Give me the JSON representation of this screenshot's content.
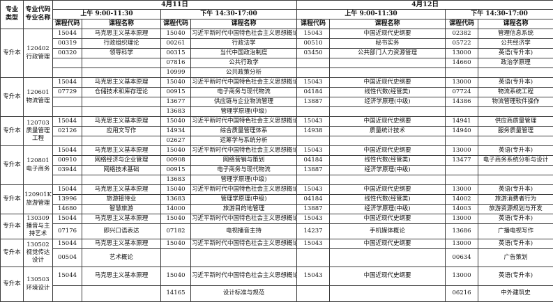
{
  "header": {
    "major_type": [
      "专业",
      "类型"
    ],
    "major_code_name": [
      "专业代码",
      "专业名称"
    ],
    "dates": [
      "4月11日",
      "4月12日"
    ],
    "am_label": "上午 9:00-11:30",
    "pm_label": "下午 14:30-17:00",
    "course_code_label": "课程代码",
    "course_name_label": "课程名称"
  },
  "majors": [
    {
      "type": "专升本",
      "code": "120402",
      "name": "行政管理",
      "rows": [
        [
          "15044",
          "马克思主义基本原理",
          "15040",
          "习近平新时代中国特色社会主义思想概论",
          "15043",
          "中国近现代史纲要",
          "02382",
          "管理信息系统"
        ],
        [
          "00319",
          "行政组织理论",
          "00261",
          "行政法学",
          "00510",
          "秘书实务",
          "05722",
          "公共经济学"
        ],
        [
          "00320",
          "领导科学",
          "00315",
          "当代中国政治制度",
          "03450",
          "公共部门人力资源管理",
          "13000",
          "英语(专升本)"
        ],
        [
          "",
          "",
          "07816",
          "公共行政学",
          "",
          "",
          "14660",
          "政治学原理"
        ],
        [
          "",
          "",
          "10999",
          "公共政策分析",
          "",
          "",
          "",
          ""
        ]
      ]
    },
    {
      "type": "专升本",
      "code": "120601",
      "name": "物流管理",
      "rows": [
        [
          "15044",
          "马克思主义基本原理",
          "15040",
          "习近平新时代中国特色社会主义思想概论",
          "15043",
          "中国近现代史纲要",
          "13000",
          "英语(专升本)"
        ],
        [
          "07729",
          "仓储技术和库存理论",
          "00915",
          "电子商务与现代物流",
          "04184",
          "线性代数(经管类)",
          "07724",
          "物流系统工程"
        ],
        [
          "",
          "",
          "13677",
          "供应链与企业物流管理",
          "13887",
          "经济学原理(中级)",
          "14386",
          "物流管理软件操作"
        ],
        [
          "",
          "",
          "13683",
          "管理学原理(中级)",
          "",
          "",
          "",
          ""
        ]
      ]
    },
    {
      "type": "专升本",
      "code": "120703",
      "name": "质量管理工程",
      "rows": [
        [
          "15044",
          "马克思主义基本原理",
          "15040",
          "习近平新时代中国特色社会主义思想概论",
          "15043",
          "中国近现代史纲要",
          "14941",
          "供应商质量管理"
        ],
        [
          "02126",
          "应用文写作",
          "14934",
          "综合质量管理体系",
          "14938",
          "质量统计技术",
          "14940",
          "服务质量管理"
        ],
        [
          "",
          "",
          "02627",
          "运筹学与系统分析",
          "",
          "",
          "",
          ""
        ]
      ]
    },
    {
      "type": "专升本",
      "code": "120801",
      "name": "电子商务",
      "rows": [
        [
          "15044",
          "马克思主义基本原理",
          "15040",
          "习近平新时代中国特色社会主义思想概论",
          "15043",
          "中国近现代史纲要",
          "13000",
          "英语(专升本)"
        ],
        [
          "00910",
          "网络经济与企业管理",
          "00908",
          "网络营销与策划",
          "04184",
          "线性代数(经管类)",
          "13477",
          "电子商务系统分析与设计"
        ],
        [
          "03944",
          "网络技术基础",
          "00915",
          "电子商务与现代物流",
          "13887",
          "经济学原理(中级)",
          "",
          ""
        ],
        [
          "",
          "",
          "13683",
          "管理学原理(中级)",
          "",
          "",
          "",
          ""
        ]
      ]
    },
    {
      "type": "专升本",
      "code": "120901K",
      "name": "旅游管理",
      "rows": [
        [
          "15044",
          "马克思主义基本原理",
          "15040",
          "习近平新时代中国特色社会主义思想概论",
          "15043",
          "中国近现代史纲要",
          "13000",
          "英语(专升本)"
        ],
        [
          "13996",
          "旅游接待业",
          "13683",
          "管理学原理(中级)",
          "04184",
          "线性代数(经管类)",
          "14002",
          "旅游消费者行为"
        ],
        [
          "14680",
          "智慧旅游",
          "14000",
          "旅游目的地管理",
          "13887",
          "经济学原理(中级)",
          "14003",
          "旅游资源规划与开发"
        ]
      ]
    },
    {
      "type": "专升本",
      "code": "130309",
      "name": "播音与主持艺术",
      "rows": [
        [
          "15044",
          "马克思主义基本原理",
          "15040",
          "习近平新时代中国特色社会主义思想概论",
          "15043",
          "中国近现代史纲要",
          "13000",
          "英语(专升本)"
        ],
        [
          "07176",
          "即兴口语表达",
          "07182",
          "电视播音主持",
          "14237",
          "手机媒体概论",
          "13686",
          "广播电视写作"
        ]
      ]
    },
    {
      "type": "专升本",
      "code": "130502",
      "name": "视觉传达设计",
      "rows": [
        [
          "15044",
          "马克思主义基本原理",
          "15040",
          "习近平新时代中国特色社会主义思想概论",
          "15043",
          "中国近现代史纲要",
          "13000",
          "英语(专升本)"
        ],
        [
          "00504",
          "艺术概论",
          "",
          "",
          "",
          "",
          "00634",
          "广告策划"
        ]
      ]
    },
    {
      "type": "专升本",
      "code": "130503",
      "name": "环境设计",
      "rows": [
        [
          "15044",
          "马克思主义基本原理",
          "15040",
          "习近平新时代中国特色社会主义思想概论",
          "15043",
          "中国近现代史纲要",
          "13000",
          "英语(专升本)"
        ],
        [
          "",
          "",
          "14165",
          "设计标准与规范",
          "",
          "",
          "06216",
          "中外建筑史"
        ]
      ]
    }
  ],
  "colors": {
    "text": "#111111",
    "border": "#3c3c3c",
    "background": "#ffffff"
  }
}
